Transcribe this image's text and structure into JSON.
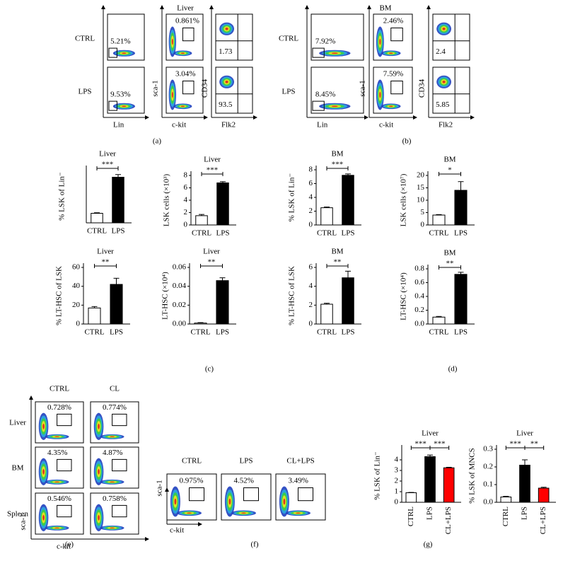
{
  "chart_data": [
    {
      "type": "bar",
      "title": "Liver",
      "ylabel": "% LSK of Lin⁻",
      "categories": [
        "CTRL",
        "LPS"
      ],
      "values": [
        0.9,
        4.3
      ],
      "errors": [
        0.05,
        0.25
      ],
      "colors": [
        "#ffffff",
        "#000000"
      ],
      "ylim": [
        0,
        5
      ],
      "significance": [
        "***"
      ]
    },
    {
      "type": "bar",
      "title": "Liver",
      "ylabel": "LSK cells (×10³)",
      "categories": [
        "CTRL",
        "LPS"
      ],
      "values": [
        1.5,
        6.8
      ],
      "errors": [
        0.2,
        0.2
      ],
      "colors": [
        "#ffffff",
        "#000000"
      ],
      "ylim": [
        0,
        8
      ],
      "yticks": [
        0,
        2,
        4,
        6,
        8
      ],
      "significance": [
        "***"
      ]
    },
    {
      "type": "bar",
      "title": "BM",
      "ylabel": "% LSK of Lin⁻",
      "categories": [
        "CTRL",
        "LPS"
      ],
      "values": [
        2.5,
        7.2
      ],
      "errors": [
        0.1,
        0.2
      ],
      "colors": [
        "#ffffff",
        "#000000"
      ],
      "ylim": [
        0,
        8
      ],
      "yticks": [
        0,
        2,
        4,
        6,
        8
      ],
      "significance": [
        "***"
      ]
    },
    {
      "type": "bar",
      "title": "BM",
      "ylabel": "LSK cells (×10⁷)",
      "categories": [
        "CTRL",
        "LPS"
      ],
      "values": [
        4,
        14
      ],
      "errors": [
        0.2,
        3.5
      ],
      "colors": [
        "#ffffff",
        "#000000"
      ],
      "ylim": [
        0,
        20
      ],
      "yticks": [
        0,
        5,
        10,
        15,
        20
      ],
      "significance": [
        "*"
      ]
    },
    {
      "type": "bar",
      "title": "Liver",
      "ylabel": "% LT-HSC of LSK",
      "categories": [
        "CTRL",
        "LPS"
      ],
      "values": [
        17,
        42
      ],
      "errors": [
        1.5,
        6.5
      ],
      "colors": [
        "#ffffff",
        "#000000"
      ],
      "ylim": [
        0,
        60
      ],
      "yticks": [
        0,
        20,
        40,
        60
      ],
      "significance": [
        "**"
      ]
    },
    {
      "type": "bar",
      "title": "Liver",
      "ylabel": "LT-HSC (×10⁴)",
      "categories": [
        "CTRL",
        "LPS"
      ],
      "values": [
        0.001,
        0.046
      ],
      "errors": [
        0.0005,
        0.003
      ],
      "colors": [
        "#ffffff",
        "#000000"
      ],
      "ylim": [
        0,
        0.06
      ],
      "yticks": [
        {
          "value": 0,
          "label": "0.00"
        },
        {
          "value": 0.02,
          "label": "0.02"
        },
        {
          "value": 0.04,
          "label": "0.04"
        },
        {
          "value": 0.06,
          "label": "0.06"
        }
      ],
      "significance": [
        "**"
      ]
    },
    {
      "type": "bar",
      "title": "BM",
      "ylabel": "% LT-HSC of LSK",
      "categories": [
        "CTRL",
        "LPS"
      ],
      "values": [
        2.1,
        4.9
      ],
      "errors": [
        0.1,
        0.7
      ],
      "colors": [
        "#ffffff",
        "#000000"
      ],
      "ylim": [
        0,
        6
      ],
      "yticks": [
        0,
        2,
        4,
        6
      ],
      "significance": [
        "**"
      ]
    },
    {
      "type": "bar",
      "title": "BM",
      "ylabel": "LT-HSC (×10⁴)",
      "categories": [
        "CTRL",
        "LPS"
      ],
      "values": [
        0.1,
        0.72
      ],
      "errors": [
        0.01,
        0.03
      ],
      "colors": [
        "#ffffff",
        "#000000"
      ],
      "ylim": [
        0,
        0.8
      ],
      "yticks": [
        {
          "value": 0,
          "label": "0.0"
        },
        0.2,
        0.4,
        0.6,
        0.8
      ],
      "significance": [
        "**"
      ]
    },
    {
      "type": "bar",
      "title": "Liver",
      "ylabel": "% LSK of Lin⁻",
      "categories": [
        "CTRL",
        "LPS",
        "CL+LPS"
      ],
      "values": [
        0.9,
        4.3,
        3.25
      ],
      "errors": [
        0.03,
        0.15,
        0.05
      ],
      "colors": [
        "#ffffff",
        "#000000",
        "#ff0000"
      ],
      "ylim": [
        0,
        5
      ],
      "yticks": [
        0,
        1,
        2,
        3,
        4
      ],
      "significance": [
        "***",
        "***"
      ]
    },
    {
      "type": "bar",
      "title": "Liver",
      "ylabel": "% LSK of MNCS",
      "categories": [
        "CTRL",
        "LPS",
        "CL+LPS"
      ],
      "values": [
        0.03,
        0.21,
        0.08
      ],
      "errors": [
        0.004,
        0.03,
        0.005
      ],
      "colors": [
        "#ffffff",
        "#000000",
        "#ff0000"
      ],
      "ylim": [
        0,
        0.3
      ],
      "yticks": [
        {
          "value": 0,
          "label": "0.0"
        },
        0.1,
        0.2,
        0.3
      ],
      "significance": [
        "***",
        "**"
      ]
    }
  ],
  "flow": {
    "a": {
      "title": "Liver",
      "rows": [
        "CTRL",
        "LPS"
      ],
      "gates": [
        [
          "5.21%",
          "0.861%",
          "1.73"
        ],
        [
          "9.53%",
          "3.04%",
          "93.5"
        ]
      ],
      "xaxes": [
        "Lin",
        "c-kit",
        "Flk2"
      ],
      "yaxes": [
        "sca-1",
        "CD34"
      ]
    },
    "b": {
      "title": "BM",
      "rows": [
        "CTRL",
        "LPS"
      ],
      "gates": [
        [
          "7.92%",
          "2.46%",
          "2.4"
        ],
        [
          "8.45%",
          "7.59%",
          "5.85"
        ]
      ],
      "xaxes": [
        "Lin",
        "c-kit",
        "Flk2"
      ],
      "yaxes": [
        "sca-1",
        "CD34"
      ]
    },
    "e": {
      "columns": [
        "CTRL",
        "CL"
      ],
      "rows": [
        "Liver",
        "BM",
        "Spleen"
      ],
      "gates": [
        [
          "0.728%",
          "0.774%"
        ],
        [
          "4.35%",
          "4.87%"
        ],
        [
          "0.546%",
          "0.758%"
        ]
      ],
      "xaxis": "c-kit",
      "yaxis": "sca-1"
    },
    "f": {
      "columns": [
        "CTRL",
        "LPS",
        "CL+LPS"
      ],
      "gates": [
        "0.975%",
        "4.52%",
        "3.49%"
      ],
      "xaxis": "c-kit",
      "yaxis": "sca-1"
    }
  },
  "panel_labels": [
    "(a)",
    "(b)",
    "(c)",
    "(d)",
    "(e)",
    "(f)",
    "(g)"
  ]
}
